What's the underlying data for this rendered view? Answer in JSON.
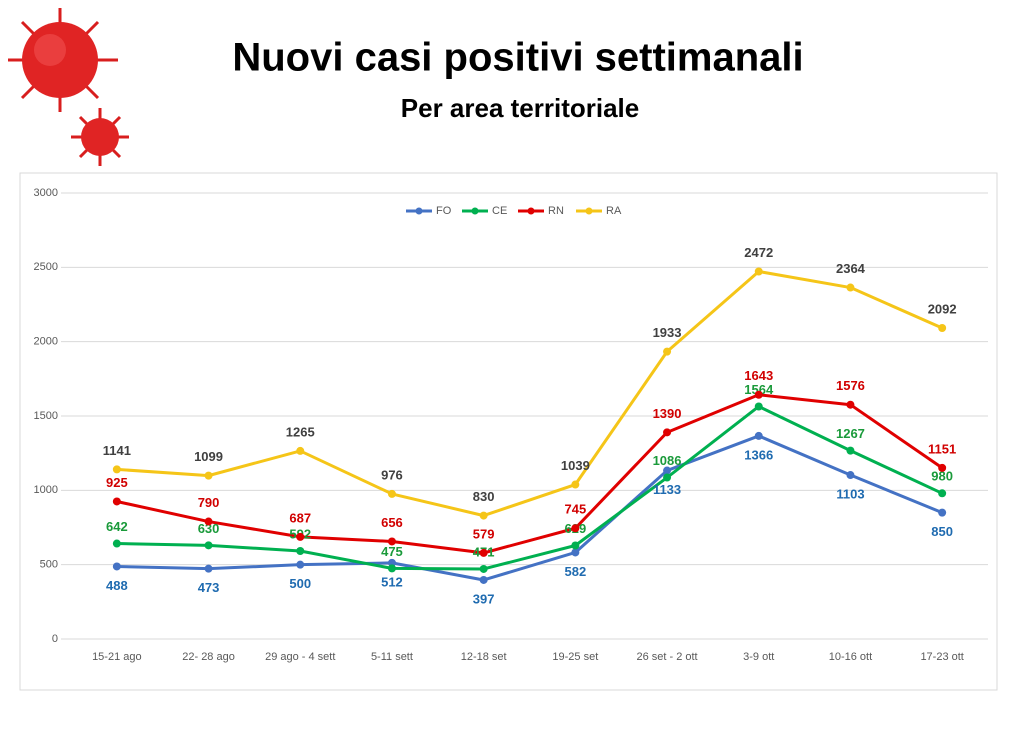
{
  "chart_data": {
    "type": "line",
    "title": "Nuovi casi positivi settimanali",
    "subtitle": "Per area territoriale",
    "categories": [
      "15-21 ago",
      "22- 28 ago",
      "29 ago - 4 sett",
      "5-11 sett",
      "12-18 set",
      "19-25 set",
      "26 set - 2 ott",
      "3-9 ott",
      "10-16 ott",
      "17-23 ott"
    ],
    "series": [
      {
        "name": "FO",
        "color": "#4472c4",
        "values": [
          488,
          473,
          500,
          512,
          397,
          582,
          1133,
          1366,
          1103,
          850
        ]
      },
      {
        "name": "CE",
        "color": "#00b050",
        "values": [
          642,
          630,
          592,
          475,
          471,
          629,
          1086,
          1564,
          1267,
          980
        ]
      },
      {
        "name": "RN",
        "color": "#e00000",
        "values": [
          925,
          790,
          687,
          656,
          579,
          745,
          1390,
          1643,
          1576,
          1151
        ]
      },
      {
        "name": "RA",
        "color": "#f5c518",
        "values": [
          1141,
          1099,
          1265,
          976,
          830,
          1039,
          1933,
          2472,
          2364,
          2092
        ]
      }
    ],
    "ylim": [
      0,
      3000
    ],
    "yticks": [
      0,
      500,
      1000,
      1500,
      2000,
      2500,
      3000
    ],
    "grid": true,
    "legend": "top"
  }
}
